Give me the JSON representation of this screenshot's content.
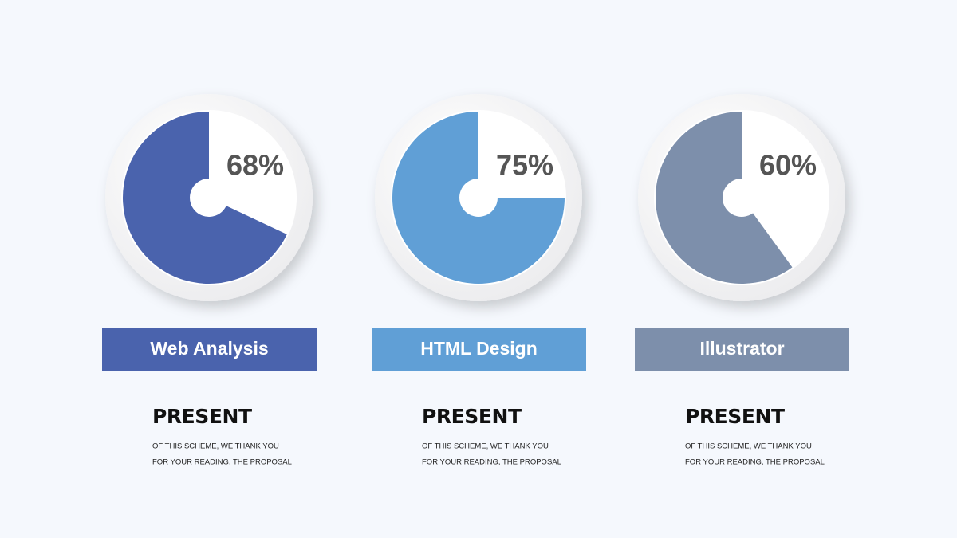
{
  "cards": [
    {
      "value": 68,
      "value_label": "68%",
      "title": "Web Analysis",
      "color": "#4a63ad",
      "heading": "PRESENT",
      "text": [
        "OF THIS SCHEME, WE THANK YOU",
        "FOR YOUR READING, THE PROPOSAL"
      ]
    },
    {
      "value": 75,
      "value_label": "75%",
      "title": "HTML Design",
      "color": "#609fd6",
      "heading": "PRESENT",
      "text": [
        "OF THIS SCHEME, WE THANK YOU",
        "FOR YOUR READING, THE PROPOSAL"
      ]
    },
    {
      "value": 60,
      "value_label": "60%",
      "title": "Illustrator",
      "color": "#7d8fab",
      "heading": "PRESENT",
      "text": [
        "OF THIS SCHEME, WE THANK YOU",
        "FOR YOUR READING, THE PROPOSAL"
      ]
    }
  ]
}
